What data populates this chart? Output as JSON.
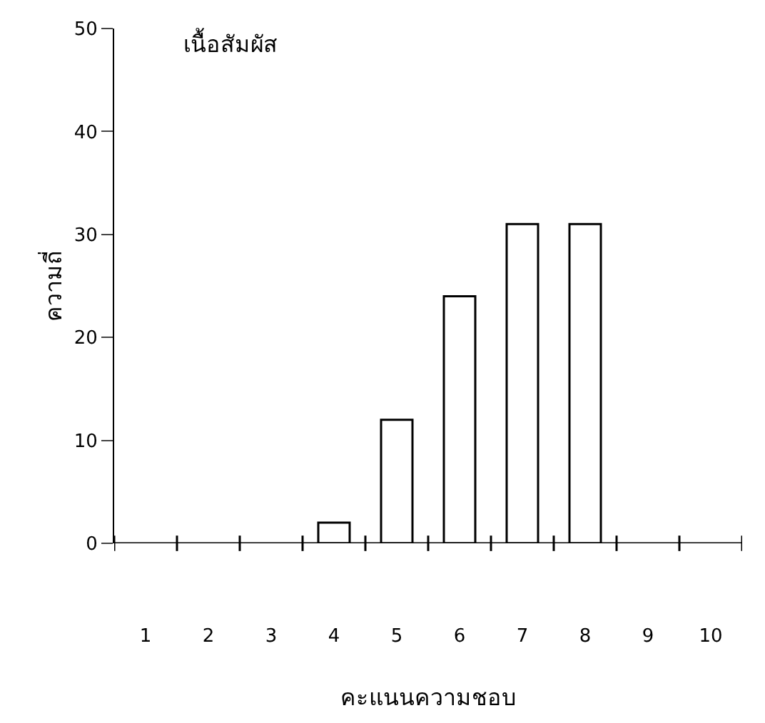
{
  "chart_data": {
    "type": "bar",
    "title": "เนื้อสัมผัส",
    "xlabel": "คะแนนความชอบ",
    "ylabel": "ความถี่",
    "categories": [
      "1",
      "2",
      "3",
      "4",
      "5",
      "6",
      "7",
      "8",
      "9",
      "10"
    ],
    "values": [
      0,
      0,
      0,
      2,
      12,
      24,
      31,
      31,
      0,
      0
    ],
    "color": "#ffffff",
    "ylim": [
      0,
      50
    ],
    "yticks": [
      0,
      10,
      20,
      30,
      40,
      50
    ],
    "legend": false
  }
}
